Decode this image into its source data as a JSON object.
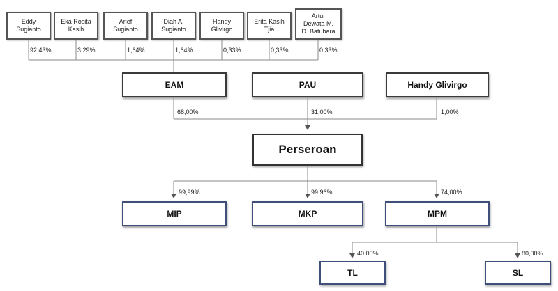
{
  "shareholders": [
    {
      "name": "Eddy\nSugianto",
      "pct": "92,43%"
    },
    {
      "name": "Eka Rosita\nKasih",
      "pct": "3,29%"
    },
    {
      "name": "Arief\nSugianto",
      "pct": "1,64%"
    },
    {
      "name": "Diah A.\nSugianto",
      "pct": "1,64%"
    },
    {
      "name": "Handy\nGlivirgo",
      "pct": "0,33%"
    },
    {
      "name": "Erita Kasih\nTjia",
      "pct": "0,33%"
    },
    {
      "name": "Artur\nDewata M.\nD. Batubara",
      "pct": "0,33%"
    }
  ],
  "holdings": [
    {
      "name": "EAM",
      "pct": "68,00%"
    },
    {
      "name": "PAU",
      "pct": "31,00%"
    },
    {
      "name": "Handy Glivirgo",
      "pct": "1,00%"
    }
  ],
  "company": {
    "name": "Perseroan"
  },
  "subsidiaries": [
    {
      "name": "MIP",
      "pct": "99,99%"
    },
    {
      "name": "MKP",
      "pct": "99,96%"
    },
    {
      "name": "MPM",
      "pct": "74,00%"
    }
  ],
  "sub_subsidiaries": [
    {
      "name": "TL",
      "pct": "40,00%"
    },
    {
      "name": "SL",
      "pct": "80,00%"
    }
  ],
  "colors": {
    "line": "#8a8a8a",
    "company_border": "#3f4f7a"
  }
}
